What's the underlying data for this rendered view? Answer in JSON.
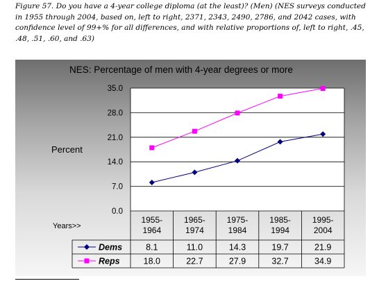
{
  "caption": "Figure 57. Do you have a 4-year college diploma (at the least)? (Men) (NES surveys conducted in 1955 through 2004, based on, left to right, 2371, 2343, 2490, 2786, and 2042 cases, with confidence level of 99+% for all differences, and with relative proportions of, left to right, .45, .48, .51, .60, and .63)",
  "chart_data": {
    "type": "line",
    "title": "NES:  Percentage of men with 4-year degrees or more",
    "ylabel": "Percent",
    "xlabel": "Years>>",
    "categories": [
      [
        "1955-",
        "1964"
      ],
      [
        "1965-",
        "1974"
      ],
      [
        "1975-",
        "1984"
      ],
      [
        "1985-",
        "1994"
      ],
      [
        "1995-",
        "2004"
      ]
    ],
    "yticks": [
      "0.0",
      "7.0",
      "14.0",
      "21.0",
      "28.0",
      "35.0"
    ],
    "ylim": [
      0,
      35
    ],
    "grid": true,
    "legend": "data-table",
    "series": [
      {
        "name": "Dems",
        "values": [
          8.1,
          11.0,
          14.3,
          19.7,
          21.9
        ],
        "labels": [
          "8.1",
          "11.0",
          "14.3",
          "19.7",
          "21.9"
        ],
        "color": "#000080",
        "marker": "diamond"
      },
      {
        "name": "Reps",
        "values": [
          18.0,
          22.7,
          27.9,
          32.7,
          34.9
        ],
        "labels": [
          "18.0",
          "22.7",
          "27.9",
          "32.7",
          "34.9"
        ],
        "color": "#ff00ff",
        "marker": "square"
      }
    ]
  }
}
